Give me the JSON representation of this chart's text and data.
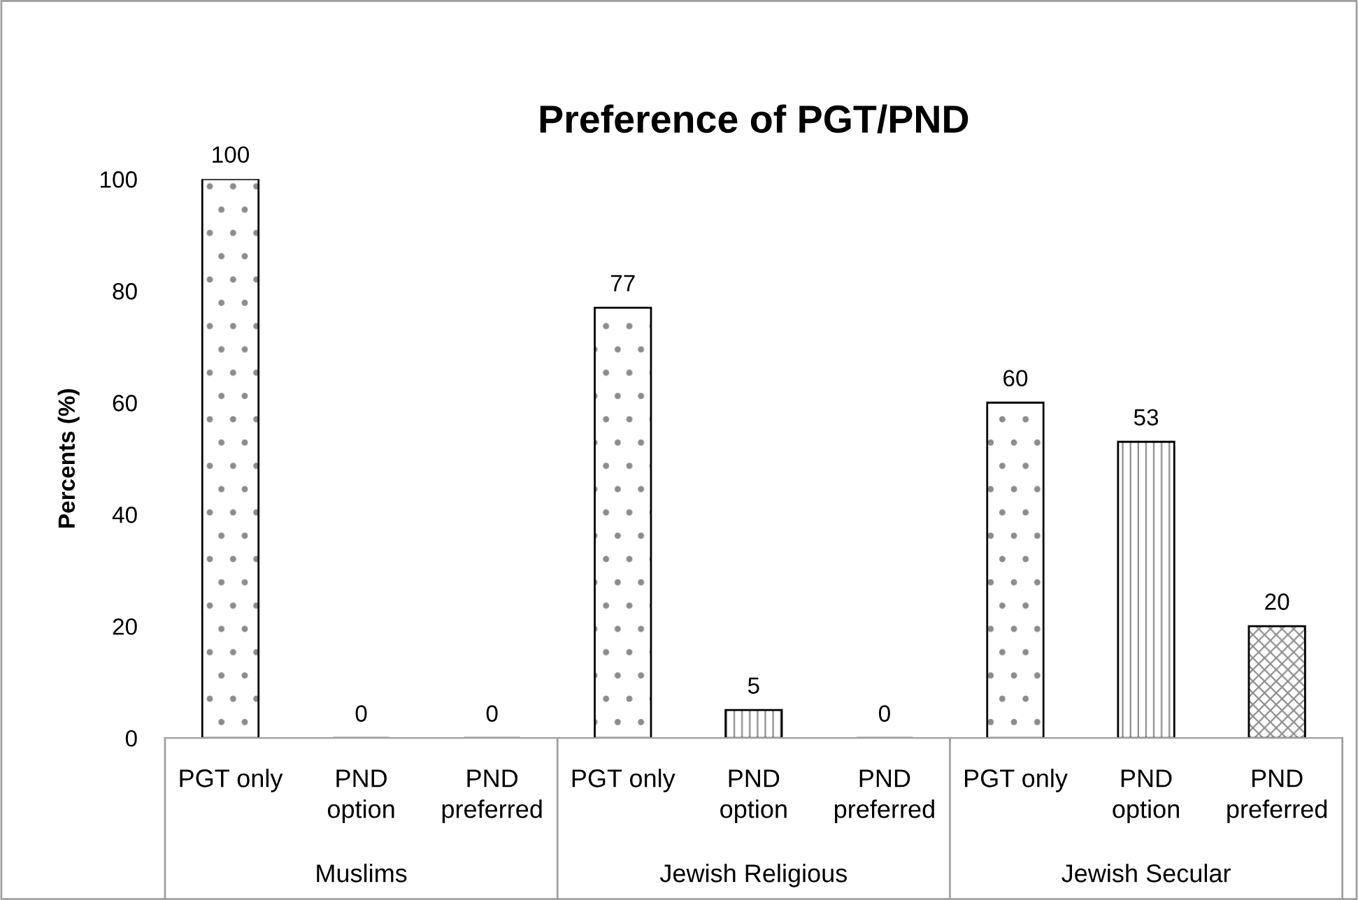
{
  "chart_data": {
    "type": "bar",
    "title": "Preference of PGT/PND",
    "ylabel": "Percents (%)",
    "categories": [
      "Muslims",
      "Jewish Religious",
      "Jewish Secular"
    ],
    "series": [
      {
        "name": "PGT only",
        "color": "#000000",
        "values": [
          100,
          77,
          60
        ]
      },
      {
        "name": "PND option",
        "color": "#000000",
        "values": [
          0,
          5,
          53
        ]
      },
      {
        "name": "PND preferred",
        "color": "#000000",
        "values": [
          0,
          0,
          20
        ]
      }
    ],
    "ylim": [
      0,
      100
    ],
    "yticks": [
      0,
      20,
      40,
      60,
      80,
      100
    ],
    "data_labels": true,
    "grid": false,
    "legend": false
  }
}
